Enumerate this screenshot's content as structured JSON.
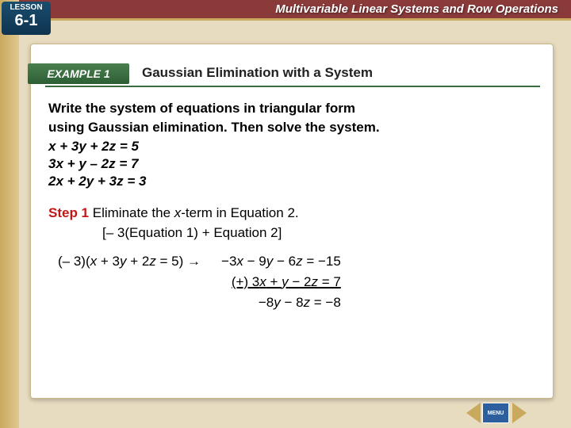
{
  "lesson": {
    "label": "LESSON",
    "number": "6-1"
  },
  "header": {
    "title": "Multivariable Linear Systems and Row Operations"
  },
  "example": {
    "ribbon": "EXAMPLE 1",
    "title": "Gaussian Elimination with a System"
  },
  "prompt": {
    "line1": "Write the system of equations in triangular form",
    "line2": "using Gaussian elimination. Then solve the system."
  },
  "system": {
    "eq1_a": "x",
    "eq1_b": " + 3",
    "eq1_c": "y",
    "eq1_d": " + 2",
    "eq1_e": "z",
    "eq1_f": " = 5",
    "eq2_a": "3",
    "eq2_b": "x",
    "eq2_c": " + ",
    "eq2_d": "y",
    "eq2_e": " – 2",
    "eq2_f": "z",
    "eq2_g": " = 7",
    "eq3_a": "2",
    "eq3_b": "x",
    "eq3_c": " + 2",
    "eq3_d": "y",
    "eq3_e": " + 3",
    "eq3_f": "z",
    "eq3_g": " = 3"
  },
  "step": {
    "label": "Step 1",
    "text_a": "  Eliminate the ",
    "text_var": "x",
    "text_b": "-term in Equation 2.",
    "sub": "[– 3(Equation 1) + Equation 2]"
  },
  "work": {
    "left_a": "(– 3)(",
    "left_b": "x",
    "left_c": " + 3",
    "left_d": "y",
    "left_e": " + 2",
    "left_f": "z",
    "left_g": " = 5) →",
    "r1_a": "−3",
    "r1_b": "x",
    "r1_c": " − 9",
    "r1_d": "y",
    "r1_e": " − 6",
    "r1_f": "z",
    "r1_g": "  = −15",
    "r2_a": "(+) 3",
    "r2_b": "x",
    "r2_c": " +  ",
    "r2_d": "y",
    "r2_e": "  − 2",
    "r2_f": "z",
    "r2_g": " = 7",
    "r3_a": "−8",
    "r3_b": "y",
    "r3_c": " − 8",
    "r3_d": "z",
    "r3_e": " = −8"
  },
  "footer": {
    "menu": "MENU"
  },
  "colors": {
    "beige_bg": "#e8dcc0",
    "gold": "#c9a95e",
    "maroon": "#8b3a3a",
    "navy": "#1a4d6e",
    "green": "#3a6a3f",
    "step_red": "#c01818",
    "blue_btn": "#2d5e9e"
  },
  "fonts": {
    "body_size_pt": 13,
    "header_size_pt": 11
  }
}
